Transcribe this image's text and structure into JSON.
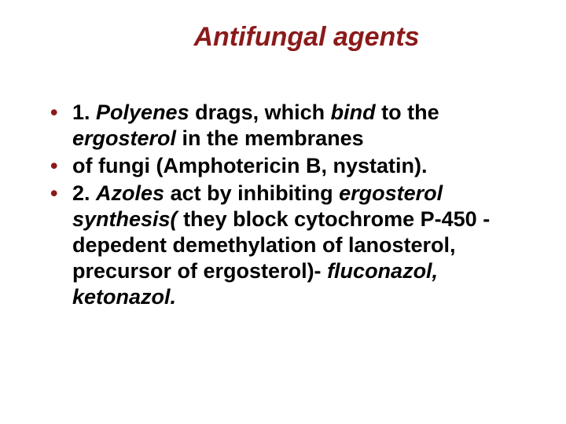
{
  "colors": {
    "title_color": "#8b1a1a",
    "bullet_color": "#8b1a1a",
    "text_color": "#000000",
    "background": "#ffffff"
  },
  "typography": {
    "title_fontsize": 34,
    "body_fontsize": 27,
    "title_bold": true,
    "title_italic": true,
    "body_bold": true
  },
  "title": "Antifungal agents",
  "bullets": [
    {
      "segments": [
        {
          "text": "1. ",
          "italic": false
        },
        {
          "text": "Polyenes",
          "italic": true
        },
        {
          "text": "  drags, which ",
          "italic": false
        },
        {
          "text": "bind",
          "italic": true
        },
        {
          "text": "  to the ",
          "italic": false
        },
        {
          "text": "ergosterol ",
          "italic": true
        },
        {
          "text": "in the membranes",
          "italic": false
        }
      ]
    },
    {
      "segments": [
        {
          "text": "of fungi (Amphotericin B, nystatin).",
          "italic": false
        }
      ]
    },
    {
      "segments": [
        {
          "text": "2. ",
          "italic": false
        },
        {
          "text": "Azoles ",
          "italic": true
        },
        {
          "text": "act by inhibiting ",
          "italic": false
        },
        {
          "text": "ergosterol synthesis( ",
          "italic": true
        },
        {
          "text": "they block cytochrome P-450 -depedent demethylation of lanosterol, precursor of ergosterol)- ",
          "italic": false
        },
        {
          "text": "fluconazol, ketonazol.",
          "italic": true
        }
      ]
    }
  ]
}
